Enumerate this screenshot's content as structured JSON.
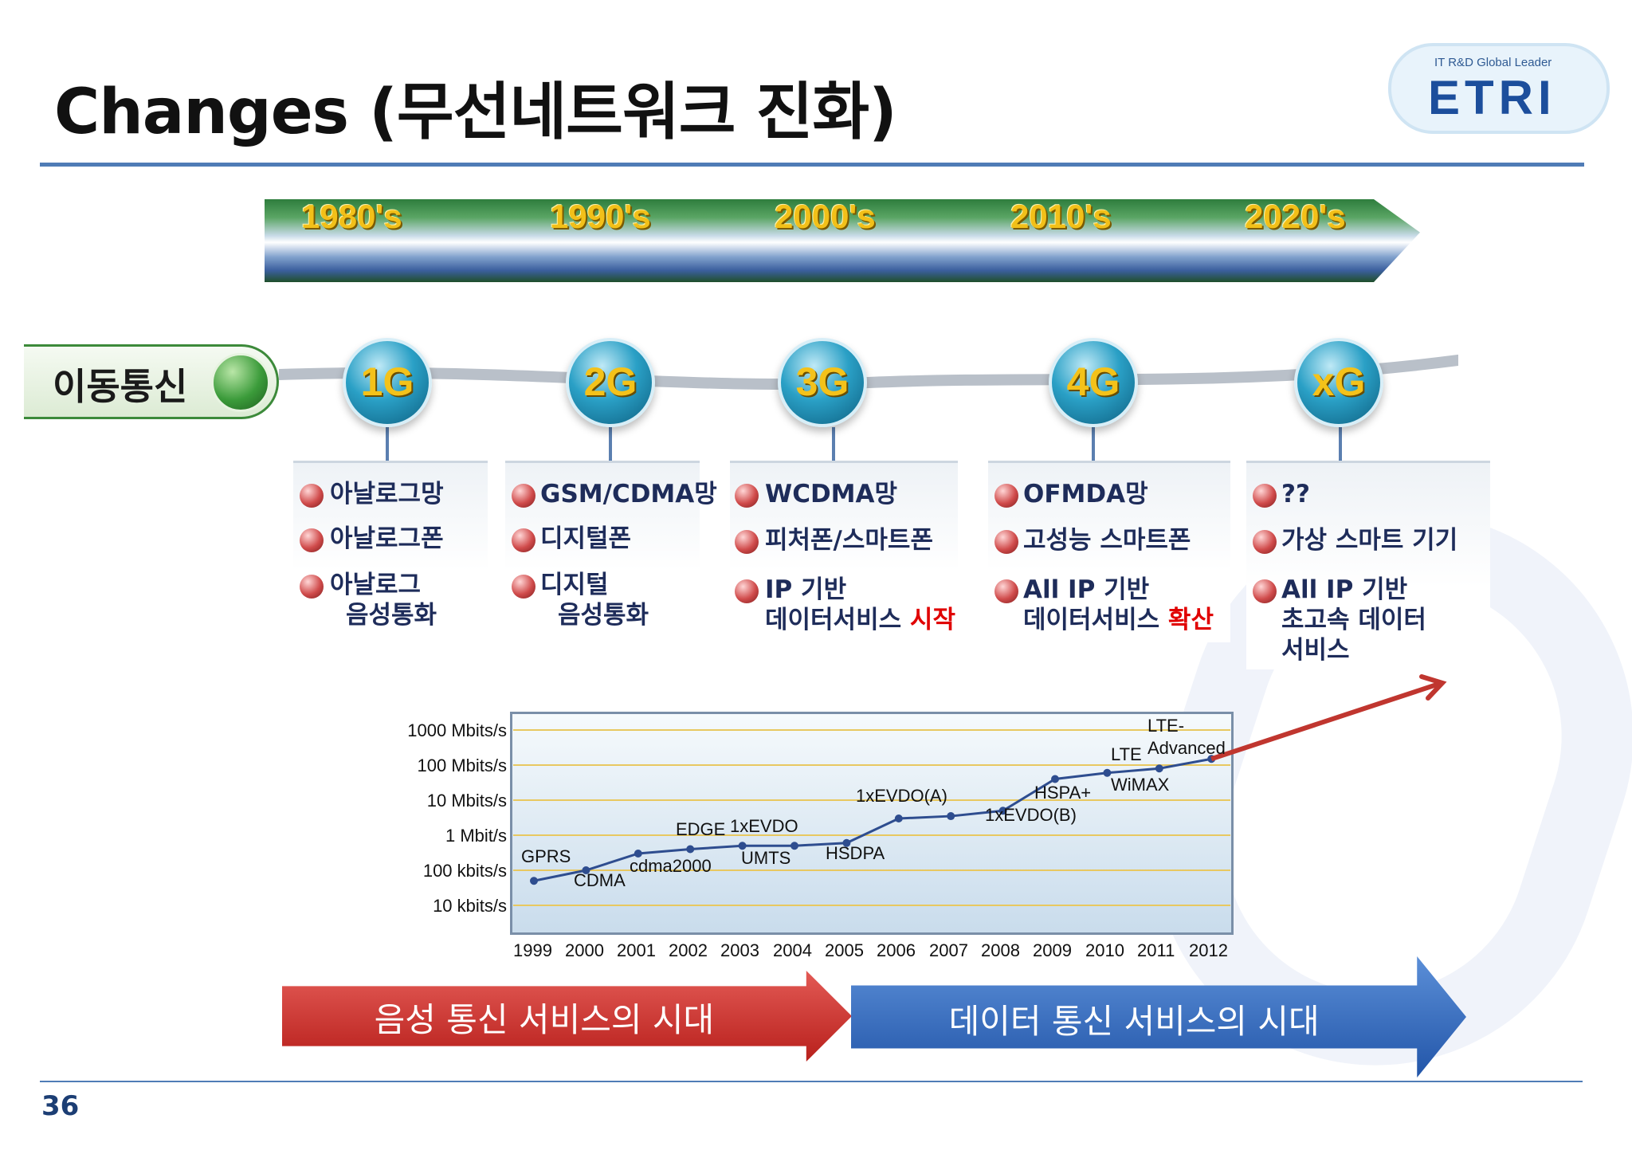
{
  "title": "Changes (무선네트워크 진화)",
  "logo": {
    "tagline": "IT R&D Global Leader",
    "name": "ETRI"
  },
  "decades": [
    "1980's",
    "1990's",
    "2000's",
    "2010's",
    "2020's"
  ],
  "mobile_label": "이동통신",
  "generations": [
    {
      "label": "1G",
      "items": [
        [
          "아날로그망"
        ],
        [
          "아날로그폰"
        ],
        [
          "아날로그",
          "음성통화"
        ]
      ]
    },
    {
      "label": "2G",
      "items": [
        [
          "GSM/CDMA망"
        ],
        [
          "디지털폰"
        ],
        [
          "디지털",
          "음성통화"
        ]
      ]
    },
    {
      "label": "3G",
      "items": [
        [
          "WCDMA망"
        ],
        [
          "피처폰/스마트폰"
        ],
        [
          "IP 기반",
          "데이터서비스 ",
          "시작"
        ]
      ]
    },
    {
      "label": "4G",
      "items": [
        [
          "OFMDA망"
        ],
        [
          "고성능 스마트폰"
        ],
        [
          "All IP 기반",
          "데이터서비스 ",
          "확산"
        ]
      ]
    },
    {
      "label": "xG",
      "items": [
        [
          "??"
        ],
        [
          "가상 스마트 기기"
        ],
        [
          "All IP 기반",
          "초고속 데이터",
          "서비스"
        ]
      ]
    }
  ],
  "chart_data": {
    "type": "line",
    "y_ticks": [
      "1000 Mbits/s",
      "100 Mbits/s",
      "10 Mbits/s",
      "1 Mbit/s",
      "100 kbits/s",
      "10 kbits/s"
    ],
    "x_ticks": [
      "1999",
      "2000",
      "2001",
      "2002",
      "2003",
      "2004",
      "2005",
      "2006",
      "2007",
      "2008",
      "2009",
      "2010",
      "2011",
      "2012"
    ],
    "y_scale": "log",
    "series": [
      {
        "x": [
          1999,
          2000,
          2001,
          2002,
          2003,
          2004,
          2005,
          2006,
          2007,
          2008,
          2009,
          2010,
          2011,
          2012
        ],
        "y_mbps": [
          0.05,
          0.1,
          0.3,
          0.4,
          0.5,
          0.5,
          0.6,
          3,
          3.5,
          5,
          40,
          60,
          80,
          150
        ]
      }
    ],
    "annotations": [
      "GPRS",
      "CDMA",
      "cdma2000",
      "EDGE",
      "1xEVDO",
      "UMTS",
      "HSDPA",
      "1xEVDO(A)",
      "1xEVDO(B)",
      "HSPA+",
      "LTE",
      "WiMAX",
      "LTE-",
      "Advanced"
    ]
  },
  "eras": {
    "voice": "음성 통신 서비스의 시대",
    "data": "데이터 통신 서비스의 시대"
  },
  "page_number": "36",
  "colors": {
    "accent": "#4f7cb6",
    "highlight": "#e00000",
    "gen_text": "#f4c21a"
  }
}
